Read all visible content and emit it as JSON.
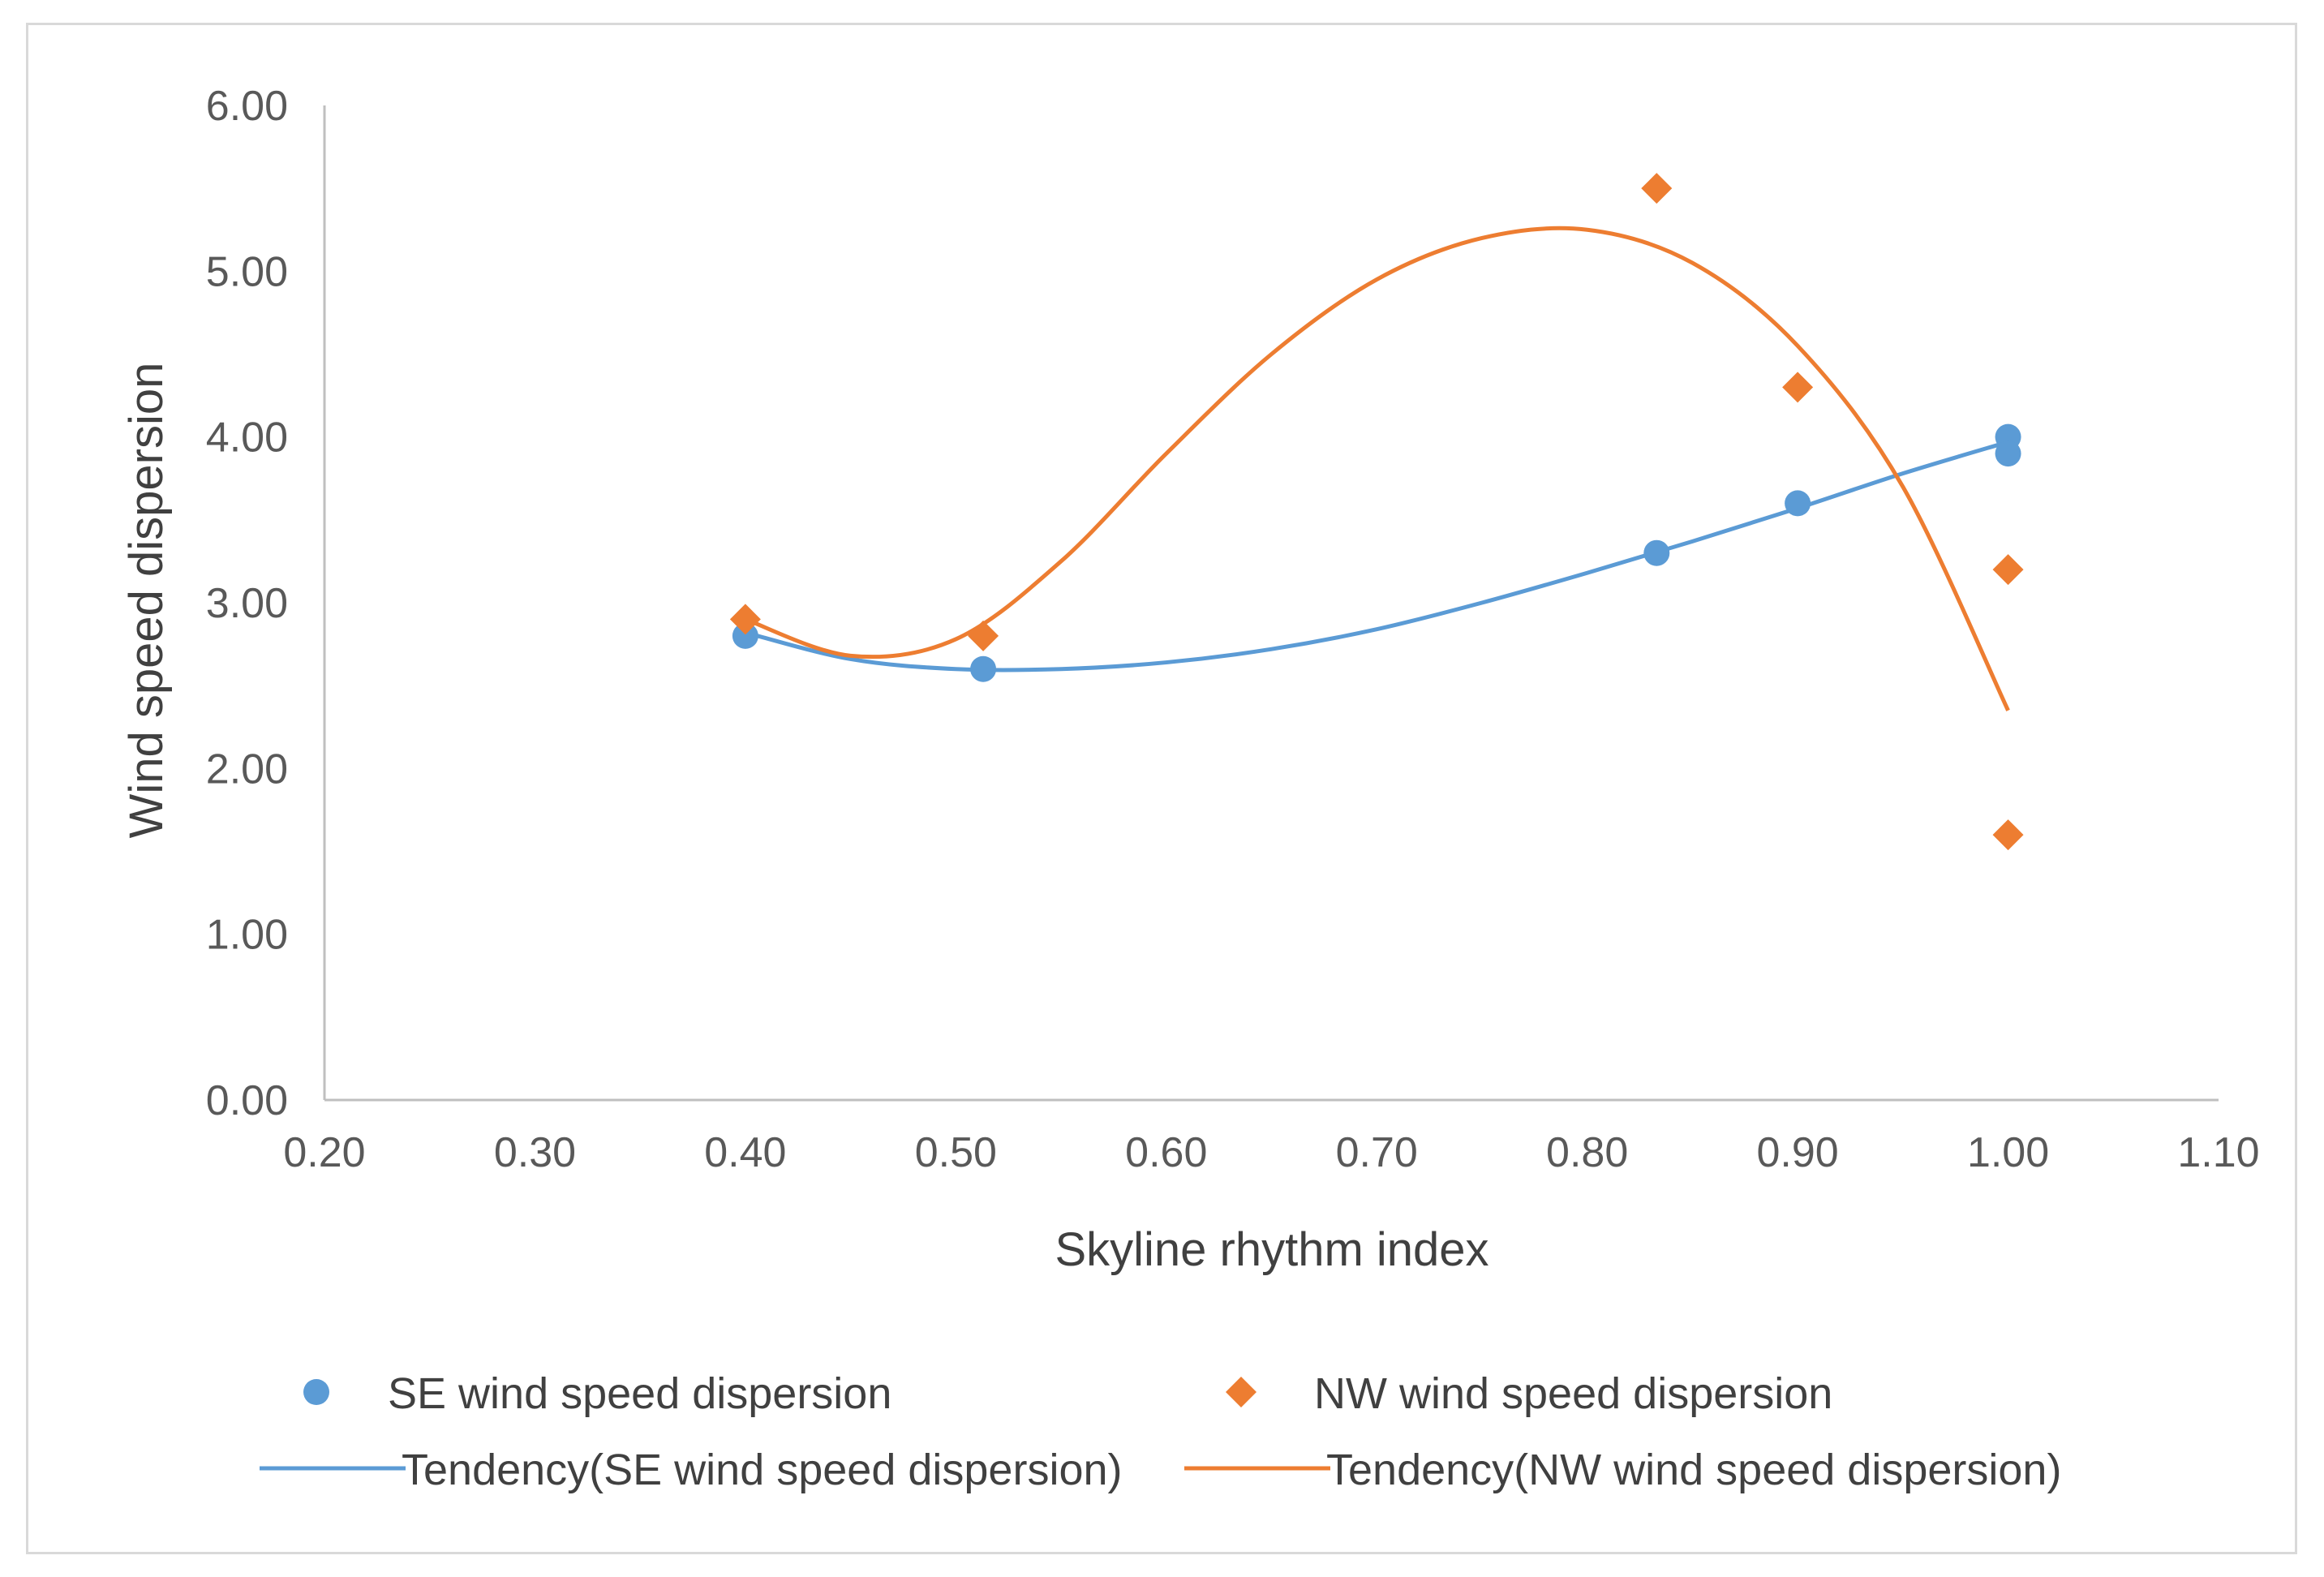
{
  "chart_data": {
    "type": "scatter",
    "title": "",
    "xlabel": "Skyline rhythm index",
    "ylabel": "Wind speed dispersion",
    "xlim": [
      0.2,
      1.1
    ],
    "ylim": [
      0,
      6
    ],
    "x_ticks": [
      "0.20",
      "0.30",
      "0.40",
      "0.50",
      "0.60",
      "0.70",
      "0.80",
      "0.90",
      "1.00",
      "1.10"
    ],
    "y_ticks": [
      "0.00",
      "1.00",
      "2.00",
      "3.00",
      "4.00",
      "5.00",
      "6.00"
    ],
    "grid": false,
    "legend_position": "bottom",
    "series": [
      {
        "name": "SE wind speed dispersion",
        "marker": "circle",
        "color": "#5B9BD5",
        "points": [
          [
            0.4,
            2.8
          ],
          [
            0.513,
            2.6
          ],
          [
            0.833,
            3.3
          ],
          [
            0.9,
            3.6
          ],
          [
            1.0,
            4.0
          ],
          [
            1.0,
            3.9
          ]
        ]
      },
      {
        "name": "NW wind speed dispersion",
        "marker": "diamond",
        "color": "#ED7D31",
        "points": [
          [
            0.4,
            2.9
          ],
          [
            0.513,
            2.8
          ],
          [
            0.833,
            5.5
          ],
          [
            0.9,
            4.3
          ],
          [
            1.0,
            3.2
          ],
          [
            1.0,
            1.6
          ]
        ]
      }
    ],
    "trendlines": [
      {
        "name": "Tendency(SE wind speed dispersion)",
        "color": "#5B9BD5",
        "points": [
          [
            0.4,
            2.82
          ],
          [
            0.45,
            2.66
          ],
          [
            0.5,
            2.6
          ],
          [
            0.55,
            2.6
          ],
          [
            0.6,
            2.64
          ],
          [
            0.65,
            2.72
          ],
          [
            0.7,
            2.84
          ],
          [
            0.75,
            3.0
          ],
          [
            0.8,
            3.18
          ],
          [
            0.85,
            3.37
          ],
          [
            0.9,
            3.57
          ],
          [
            0.95,
            3.78
          ],
          [
            1.0,
            3.97
          ]
        ]
      },
      {
        "name": "Tendency(NW wind speed dispersion)",
        "color": "#ED7D31",
        "points": [
          [
            0.4,
            2.9
          ],
          [
            0.45,
            2.68
          ],
          [
            0.5,
            2.78
          ],
          [
            0.55,
            3.25
          ],
          [
            0.6,
            3.9
          ],
          [
            0.65,
            4.5
          ],
          [
            0.7,
            4.95
          ],
          [
            0.75,
            5.2
          ],
          [
            0.8,
            5.25
          ],
          [
            0.85,
            5.05
          ],
          [
            0.9,
            4.55
          ],
          [
            0.95,
            3.7
          ],
          [
            1.0,
            2.35
          ]
        ]
      }
    ]
  }
}
